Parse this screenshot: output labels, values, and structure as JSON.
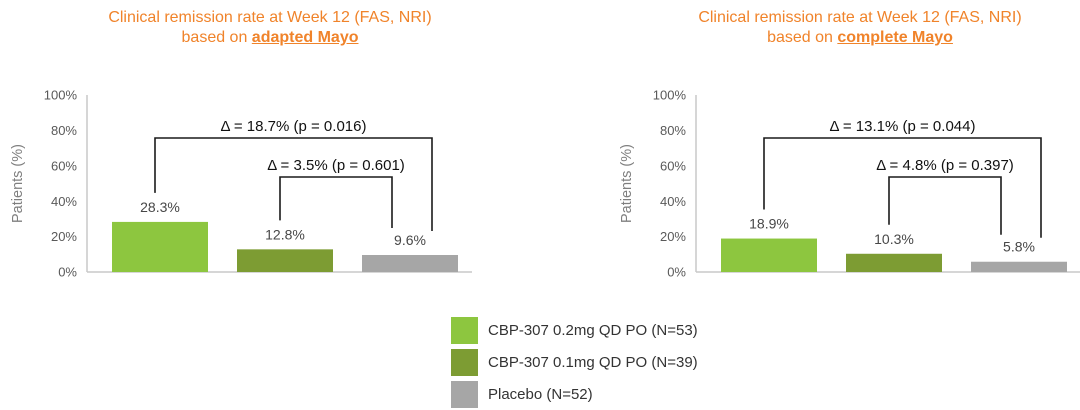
{
  "page": {
    "background": "#FFFFFF"
  },
  "colors": {
    "title_text": "#F0832A",
    "series": [
      "#8DC63F",
      "#7D9C33",
      "#A6A6A6"
    ],
    "axis_line": "#C9C9C9",
    "tick_text": "#595959",
    "axis_title_text": "#7F7F7F",
    "value_label_text": "#474747",
    "annotation_text": "#111111",
    "bracket_line": "#1A1A1A"
  },
  "legend": {
    "items": [
      {
        "label": "CBP-307 0.2mg QD PO (N=53)",
        "color": "#8DC63F"
      },
      {
        "label": "CBP-307 0.1mg QD PO (N=39)",
        "color": "#7D9C33"
      },
      {
        "label": "Placebo (N=52)",
        "color": "#A6A6A6"
      }
    ]
  },
  "chart_data": [
    {
      "type": "bar",
      "title": "Clinical remission rate at Week 12 (FAS, NRI) based on adapted Mayo",
      "title_line1": "Clinical remission rate at Week 12 (FAS, NRI)",
      "title_line2_prefix": "based on ",
      "title_line2_emphasis": "adapted Mayo",
      "ylabel": "Patients (%)",
      "ylim": [
        0,
        100
      ],
      "yticks": [
        "0%",
        "20%",
        "40%",
        "60%",
        "80%",
        "100%"
      ],
      "grid": false,
      "legend_position": "bottom-center",
      "categories": [
        "CBP-307 0.2mg QD PO (N=53)",
        "CBP-307 0.1mg QD PO (N=39)",
        "Placebo (N=52)"
      ],
      "values": [
        28.3,
        12.8,
        9.6
      ],
      "value_labels": [
        "28.3%",
        "12.8%",
        "9.6%"
      ],
      "annotations": [
        {
          "text": "Δ = 18.7% (p = 0.016)",
          "delta_pct": 18.7,
          "p_value": 0.016,
          "between": [
            0,
            2
          ]
        },
        {
          "text": "Δ = 3.5% (p = 0.601)",
          "delta_pct": 3.5,
          "p_value": 0.601,
          "between": [
            1,
            2
          ]
        }
      ]
    },
    {
      "type": "bar",
      "title": "Clinical remission rate at Week 12 (FAS, NRI) based on complete Mayo",
      "title_line1": "Clinical remission rate at Week 12 (FAS, NRI)",
      "title_line2_prefix": "based on ",
      "title_line2_emphasis": "complete Mayo",
      "ylabel": "Patients (%)",
      "ylim": [
        0,
        100
      ],
      "yticks": [
        "0%",
        "20%",
        "40%",
        "60%",
        "80%",
        "100%"
      ],
      "grid": false,
      "legend_position": "bottom-center",
      "categories": [
        "CBP-307 0.2mg QD PO (N=53)",
        "CBP-307 0.1mg QD PO (N=39)",
        "Placebo (N=52)"
      ],
      "values": [
        18.9,
        10.3,
        5.8
      ],
      "value_labels": [
        "18.9%",
        "10.3%",
        "5.8%"
      ],
      "annotations": [
        {
          "text": "Δ = 13.1% (p = 0.044)",
          "delta_pct": 13.1,
          "p_value": 0.044,
          "between": [
            0,
            2
          ]
        },
        {
          "text": "Δ = 4.8% (p = 0.397)",
          "delta_pct": 4.8,
          "p_value": 0.397,
          "between": [
            1,
            2
          ]
        }
      ]
    }
  ]
}
